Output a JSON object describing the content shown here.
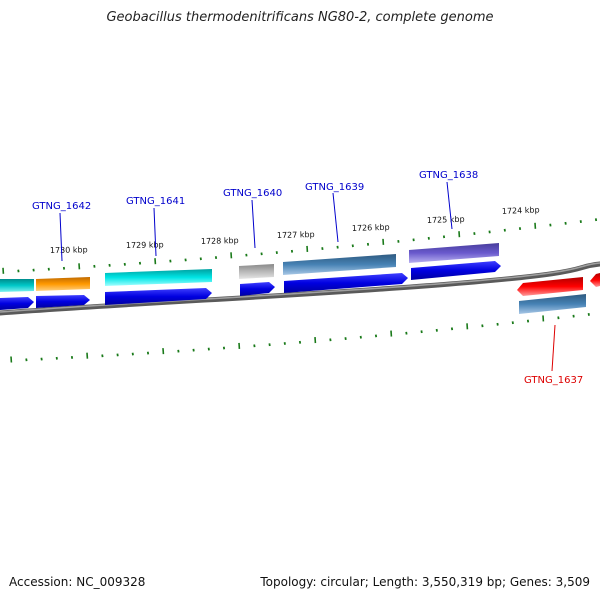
{
  "title": "Geobacillus thermodenitrificans NG80-2, complete genome",
  "footer": {
    "accession": "Accession: NC_009328",
    "summary": "Topology: circular; Length: 3,550,319 bp; Genes: 3,509"
  },
  "colors": {
    "backbone": "#808080",
    "tick": "#1a7a1a",
    "cds_blue": "#0000e6",
    "label_forward": "#0000cc",
    "label_reverse": "#dd0000"
  },
  "scale_labels": [
    "1730 kbp",
    "1729 kbp",
    "1728 kbp",
    "1727 kbp",
    "1726 kbp",
    "1725 kbp",
    "1724 kbp"
  ],
  "gene_labels": [
    {
      "text": "GTNG_1642",
      "strand": "forward"
    },
    {
      "text": "GTNG_1641",
      "strand": "forward"
    },
    {
      "text": "GTNG_1640",
      "strand": "forward"
    },
    {
      "text": "GTNG_1639",
      "strand": "forward"
    },
    {
      "text": "GTNG_1638",
      "strand": "forward"
    },
    {
      "text": "GTNG_1637",
      "strand": "reverse"
    }
  ],
  "feature_colors": [
    "#00c8c8",
    "#ff9900",
    "#00e5e5",
    "#b0b0b0",
    "#4682b4",
    "#6a5acd",
    "#ff0000",
    "#4682b4"
  ]
}
